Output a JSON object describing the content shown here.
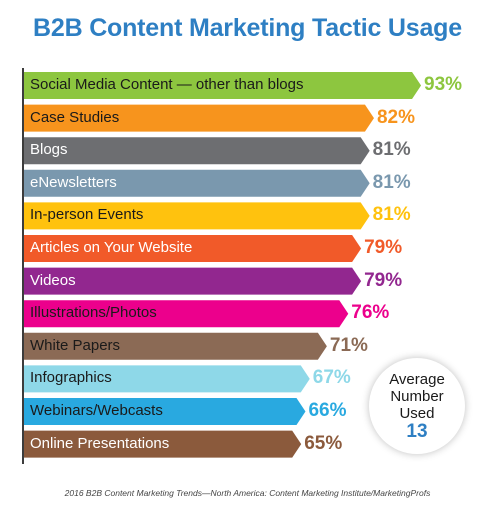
{
  "chart_data": {
    "type": "bar",
    "orientation": "horizontal",
    "title": "B2B Content Marketing Tactic Usage",
    "categories": [
      "Social Media Content — other than blogs",
      "Case Studies",
      "Blogs",
      "eNewsletters",
      "In-person Events",
      "Articles on Your Website",
      "Videos",
      "Illustrations/Photos",
      "White Papers",
      "Infographics",
      "Webinars/Webcasts",
      "Online Presentations"
    ],
    "values": [
      93,
      82,
      81,
      81,
      81,
      79,
      79,
      76,
      71,
      67,
      66,
      65
    ],
    "value_labels": [
      "93%",
      "82%",
      "81%",
      "81%",
      "81%",
      "79%",
      "79%",
      "76%",
      "71%",
      "67%",
      "66%",
      "65%"
    ],
    "colors": [
      "#8dc63f",
      "#f7941d",
      "#6d6e71",
      "#7a98ae",
      "#ffc20e",
      "#f15a29",
      "#92278f",
      "#ec008c",
      "#8b6a55",
      "#8ed8e8",
      "#29a9e0",
      "#8b5a3c"
    ],
    "label_text_colors": [
      "#1a1a1a",
      "#1a1a1a",
      "#ffffff",
      "#ffffff",
      "#1a1a1a",
      "#ffffff",
      "#ffffff",
      "#1a1a1a",
      "#1a1a1a",
      "#1a1a1a",
      "#1a1a1a",
      "#ffffff"
    ],
    "unit": "%",
    "xlabel": "",
    "ylabel": "",
    "grid": false,
    "legend": "none"
  },
  "callout": {
    "line1": "Average",
    "line2": "Number",
    "line3": "Used",
    "value": "13"
  },
  "footer": "2016 B2B Content Marketing Trends—North America: Content Marketing Institute/MarketingProfs"
}
